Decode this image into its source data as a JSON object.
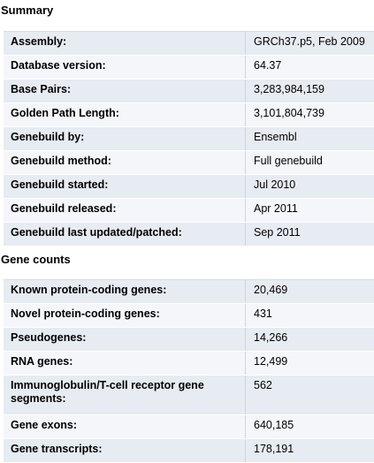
{
  "summary": {
    "title": "Summary",
    "rows": [
      {
        "key": "Assembly:",
        "value": "GRCh37.p5, Feb 2009"
      },
      {
        "key": "Database version:",
        "value": "64.37"
      },
      {
        "key": "Base Pairs:",
        "value": "3,283,984,159"
      },
      {
        "key": "Golden Path Length:",
        "value": "3,101,804,739"
      },
      {
        "key": "Genebuild by:",
        "value": "Ensembl"
      },
      {
        "key": "Genebuild method:",
        "value": "Full genebuild"
      },
      {
        "key": "Genebuild started:",
        "value": "Jul 2010"
      },
      {
        "key": "Genebuild released:",
        "value": "Apr 2011"
      },
      {
        "key": "Genebuild last updated/patched:",
        "value": "Sep 2011"
      }
    ]
  },
  "gene_counts": {
    "title": "Gene counts",
    "rows": [
      {
        "key": "Known protein-coding genes:",
        "value": "20,469"
      },
      {
        "key": "Novel protein-coding genes:",
        "value": "431"
      },
      {
        "key": "Pseudogenes:",
        "value": "14,266"
      },
      {
        "key": "RNA genes:",
        "value": "12,499"
      },
      {
        "key": "Immunoglobulin/T-cell receptor gene segments:",
        "value": "562"
      },
      {
        "key": "Gene exons:",
        "value": "640,185"
      },
      {
        "key": "Gene transcripts:",
        "value": "178,191"
      }
    ]
  }
}
